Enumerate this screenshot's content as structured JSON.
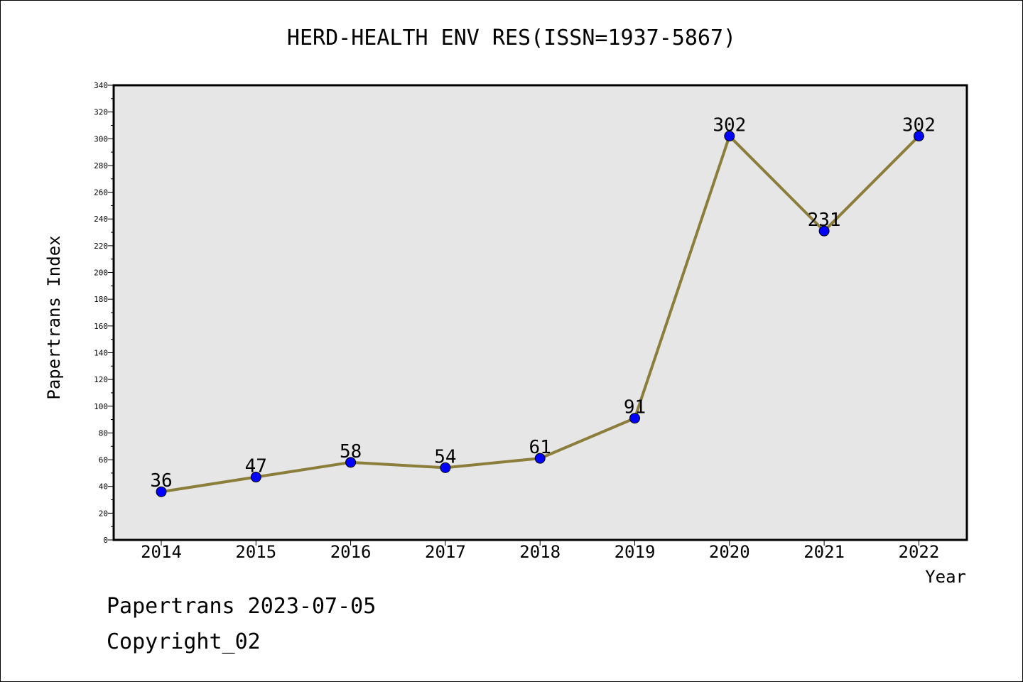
{
  "title": "HERD-HEALTH ENV RES(ISSN=1937-5867)",
  "footer": {
    "date_line": "Papertrans 2023-07-05",
    "copyright_line": "Copyright_02"
  },
  "chart_data": {
    "type": "line",
    "title": "HERD-HEALTH ENV RES(ISSN=1937-5867)",
    "xlabel": "Year",
    "ylabel": "Papertrans Index",
    "categories": [
      "2014",
      "2015",
      "2016",
      "2017",
      "2018",
      "2019",
      "2020",
      "2021",
      "2022"
    ],
    "values": [
      36,
      47,
      58,
      54,
      61,
      91,
      302,
      231,
      302
    ],
    "data_labels": [
      "36",
      "47",
      "58",
      "54",
      "61",
      "91",
      "302",
      "231",
      "302"
    ],
    "ylim": [
      0,
      340
    ],
    "yticks": [
      0,
      20,
      40,
      60,
      80,
      100,
      120,
      140,
      160,
      180,
      200,
      220,
      240,
      260,
      280,
      300,
      320,
      340
    ],
    "grid": false,
    "legend": "none",
    "colors": {
      "line": "#8B7D3A",
      "marker_fill": "#0000FF",
      "plot_background": "#E6E6E6"
    }
  }
}
